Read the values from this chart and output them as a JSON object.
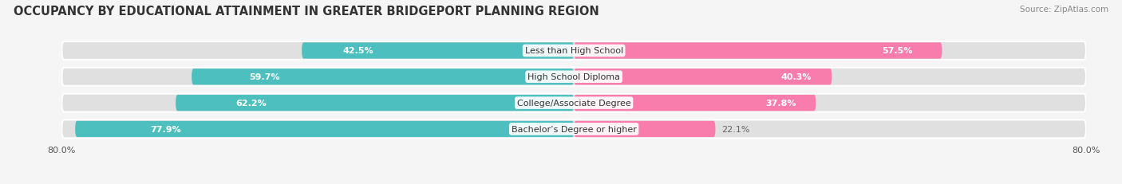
{
  "title": "OCCUPANCY BY EDUCATIONAL ATTAINMENT IN GREATER BRIDGEPORT PLANNING REGION",
  "source": "Source: ZipAtlas.com",
  "categories": [
    "Less than High School",
    "High School Diploma",
    "College/Associate Degree",
    "Bachelor’s Degree or higher"
  ],
  "owner_pct": [
    42.5,
    59.7,
    62.2,
    77.9
  ],
  "renter_pct": [
    57.5,
    40.3,
    37.8,
    22.1
  ],
  "owner_color": "#4DBFBF",
  "renter_color": "#F87DAD",
  "track_color": "#E0E0E0",
  "background_color": "#F5F5F5",
  "title_fontsize": 10.5,
  "label_fontsize": 8.0,
  "pct_fontsize": 8.0,
  "source_fontsize": 7.5,
  "legend_fontsize": 8.0,
  "axis_label_fontsize": 8.0,
  "xlim_left": -80.0,
  "xlim_right": 80.0,
  "x_axis_left_label": "80.0%",
  "x_axis_right_label": "80.0%"
}
